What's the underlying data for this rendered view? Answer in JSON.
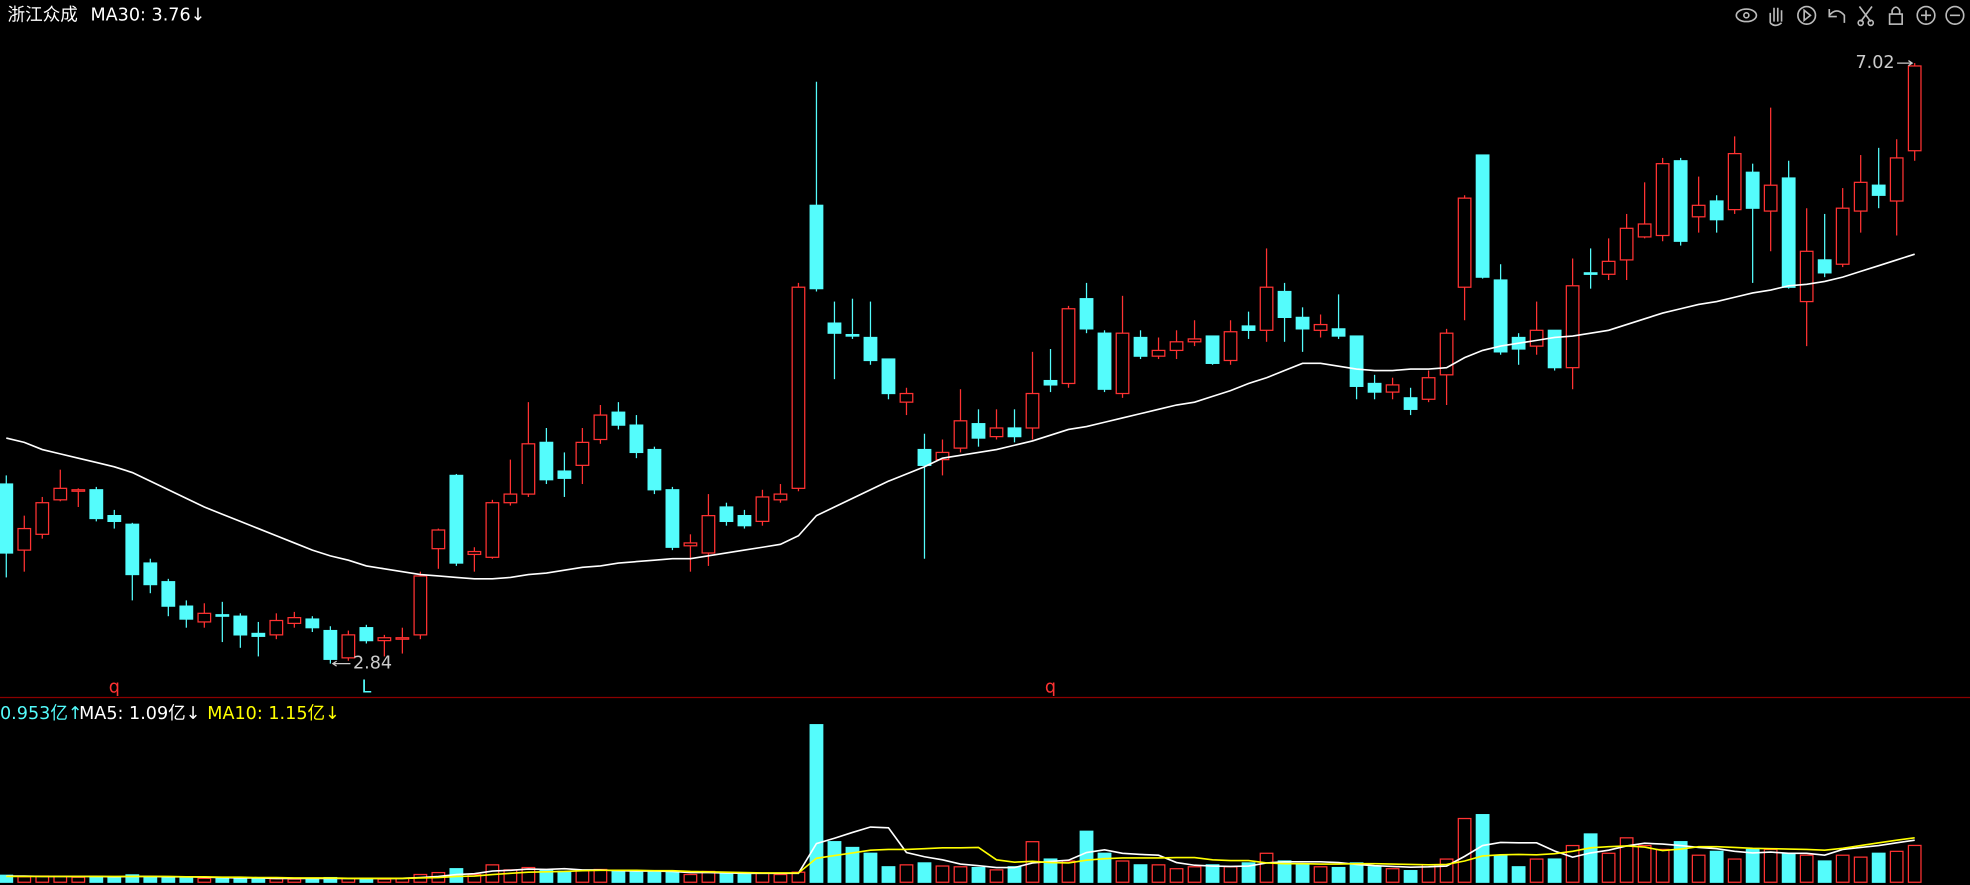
{
  "chart_data": {
    "type": "candlestick",
    "title": "浙江众成",
    "up_color": "#ff3232",
    "down_color": "#54fcfc",
    "ylim": [
      2.63,
      7.3
    ],
    "open": [
      4.09,
      3.63,
      3.74,
      3.98,
      4.04,
      4.05,
      3.87,
      3.81,
      3.54,
      3.41,
      3.24,
      3.13,
      3.18,
      3.17,
      3.05,
      3.04,
      3.12,
      3.15,
      3.07,
      2.88,
      3.09,
      3.0,
      3.01,
      3.04,
      3.64,
      4.15,
      3.6,
      3.58,
      3.96,
      4.02,
      4.38,
      4.18,
      4.22,
      4.4,
      4.59,
      4.5,
      4.33,
      4.05,
      3.66,
      3.61,
      3.93,
      3.87,
      3.83,
      3.98,
      4.06,
      6.03,
      5.21,
      5.13,
      5.11,
      4.96,
      4.66,
      4.33,
      4.26,
      4.34,
      4.51,
      4.42,
      4.48,
      4.48,
      4.81,
      4.79,
      5.38,
      5.14,
      4.72,
      5.11,
      4.98,
      5.02,
      5.08,
      5.12,
      4.95,
      5.19,
      5.16,
      5.43,
      5.25,
      5.16,
      5.17,
      5.12,
      4.79,
      4.73,
      4.69,
      4.68,
      4.85,
      5.46,
      6.38,
      5.51,
      5.11,
      5.05,
      5.16,
      4.9,
      5.56,
      5.55,
      5.65,
      5.81,
      5.82,
      6.34,
      5.95,
      6.06,
      6.0,
      6.26,
      5.99,
      6.22,
      5.36,
      5.65,
      5.62,
      5.99,
      6.17,
      6.06,
      6.41
    ],
    "high": [
      4.15,
      3.87,
      4.0,
      4.19,
      4.06,
      4.07,
      3.91,
      3.82,
      3.57,
      3.43,
      3.28,
      3.26,
      3.27,
      3.19,
      3.13,
      3.19,
      3.2,
      3.17,
      3.1,
      3.07,
      3.11,
      3.04,
      3.09,
      3.48,
      3.78,
      4.16,
      3.65,
      3.98,
      4.26,
      4.66,
      4.48,
      4.31,
      4.48,
      4.64,
      4.66,
      4.57,
      4.35,
      4.07,
      3.74,
      4.02,
      3.96,
      3.91,
      4.05,
      4.09,
      5.49,
      6.89,
      5.36,
      5.38,
      5.36,
      4.96,
      4.76,
      4.44,
      4.4,
      4.75,
      4.61,
      4.61,
      4.61,
      5.01,
      5.03,
      5.33,
      5.49,
      5.16,
      5.4,
      5.16,
      5.11,
      5.16,
      5.23,
      5.12,
      5.23,
      5.29,
      5.73,
      5.49,
      5.32,
      5.27,
      5.41,
      5.12,
      4.85,
      4.83,
      4.76,
      4.88,
      5.17,
      6.1,
      6.38,
      5.62,
      5.14,
      5.36,
      5.16,
      5.66,
      5.73,
      5.8,
      5.97,
      6.19,
      6.36,
      6.36,
      6.23,
      6.1,
      6.51,
      6.32,
      6.71,
      6.34,
      6.01,
      5.97,
      6.15,
      6.38,
      6.43,
      6.49,
      7.02
    ],
    "low": [
      3.44,
      3.48,
      3.71,
      3.97,
      3.93,
      3.83,
      3.78,
      3.28,
      3.33,
      3.17,
      3.09,
      3.09,
      2.99,
      2.95,
      2.89,
      3.01,
      3.09,
      3.06,
      2.84,
      2.86,
      2.98,
      2.89,
      2.91,
      3.01,
      3.5,
      3.52,
      3.48,
      3.57,
      3.94,
      4.0,
      4.09,
      4.0,
      4.09,
      4.37,
      4.47,
      4.27,
      4.02,
      3.63,
      3.48,
      3.52,
      3.8,
      3.78,
      3.8,
      3.96,
      4.04,
      5.43,
      4.82,
      5.1,
      4.92,
      4.68,
      4.57,
      3.57,
      4.15,
      4.31,
      4.35,
      4.4,
      4.38,
      4.4,
      4.73,
      4.76,
      5.14,
      4.73,
      4.69,
      4.96,
      4.96,
      4.96,
      5.05,
      4.92,
      4.92,
      5.1,
      5.08,
      5.08,
      5.01,
      5.11,
      5.1,
      4.68,
      4.68,
      4.68,
      4.57,
      4.66,
      4.64,
      5.23,
      5.52,
      4.99,
      4.92,
      4.99,
      4.88,
      4.75,
      5.45,
      5.51,
      5.51,
      5.8,
      5.78,
      5.75,
      5.84,
      5.84,
      5.97,
      5.49,
      5.71,
      5.45,
      5.05,
      5.53,
      5.6,
      5.84,
      6.01,
      5.82,
      6.34
    ],
    "close": [
      3.61,
      3.78,
      3.96,
      4.06,
      4.05,
      3.85,
      3.83,
      3.46,
      3.39,
      3.24,
      3.15,
      3.19,
      3.17,
      3.04,
      3.03,
      3.14,
      3.16,
      3.09,
      2.87,
      3.04,
      3.0,
      3.02,
      3.02,
      3.45,
      3.77,
      3.54,
      3.62,
      3.96,
      4.02,
      4.37,
      4.12,
      4.13,
      4.38,
      4.57,
      4.5,
      4.31,
      4.05,
      3.65,
      3.68,
      3.87,
      3.83,
      3.8,
      4.0,
      4.02,
      5.46,
      5.45,
      5.14,
      5.12,
      4.95,
      4.72,
      4.72,
      4.22,
      4.31,
      4.53,
      4.41,
      4.48,
      4.42,
      4.72,
      4.78,
      5.31,
      5.17,
      4.75,
      5.14,
      4.98,
      5.02,
      5.08,
      5.1,
      4.93,
      5.15,
      5.16,
      5.46,
      5.25,
      5.17,
      5.2,
      5.12,
      4.77,
      4.73,
      4.78,
      4.61,
      4.83,
      5.14,
      6.08,
      5.53,
      5.01,
      5.03,
      5.16,
      4.9,
      5.47,
      5.55,
      5.64,
      5.87,
      5.9,
      6.32,
      5.78,
      6.03,
      5.93,
      6.39,
      6.01,
      6.17,
      5.46,
      5.71,
      5.56,
      6.01,
      6.19,
      6.1,
      6.36,
      7.0
    ],
    "overlays": [
      {
        "name": "MA30: 3.76↓",
        "color": "#ffffff",
        "values": [
          4.41,
          4.38,
          4.33,
          4.3,
          4.27,
          4.24,
          4.21,
          4.17,
          4.11,
          4.05,
          3.99,
          3.93,
          3.88,
          3.83,
          3.78,
          3.73,
          3.68,
          3.63,
          3.59,
          3.56,
          3.52,
          3.5,
          3.48,
          3.46,
          3.45,
          3.44,
          3.43,
          3.43,
          3.44,
          3.46,
          3.47,
          3.49,
          3.51,
          3.52,
          3.54,
          3.55,
          3.56,
          3.57,
          3.57,
          3.59,
          3.61,
          3.63,
          3.65,
          3.67,
          3.73,
          3.87,
          3.93,
          3.99,
          4.05,
          4.11,
          4.16,
          4.21,
          4.27,
          4.29,
          4.31,
          4.33,
          4.36,
          4.39,
          4.43,
          4.47,
          4.49,
          4.52,
          4.55,
          4.58,
          4.61,
          4.64,
          4.66,
          4.7,
          4.74,
          4.79,
          4.83,
          4.88,
          4.93,
          4.93,
          4.91,
          4.89,
          4.88,
          4.88,
          4.89,
          4.89,
          4.9,
          4.97,
          5.02,
          5.05,
          5.07,
          5.09,
          5.11,
          5.12,
          5.14,
          5.16,
          5.2,
          5.24,
          5.28,
          5.31,
          5.34,
          5.36,
          5.39,
          5.42,
          5.44,
          5.47,
          5.48,
          5.5,
          5.53,
          5.57,
          5.61,
          5.65,
          5.69
        ]
      }
    ],
    "markers": [
      {
        "index": 6,
        "label": "q",
        "color": "#ff3232"
      },
      {
        "index": 20,
        "label": "L",
        "color": "#54fcfc"
      },
      {
        "index": 58,
        "label": "q",
        "color": "#ff3232"
      }
    ],
    "volume": {
      "type": "bar",
      "label": "0.953亿↑",
      "label_color": "#54fcfc",
      "ylim": [
        0,
        4.1
      ],
      "values": [
        0.18,
        0.14,
        0.16,
        0.15,
        0.13,
        0.15,
        0.12,
        0.19,
        0.14,
        0.12,
        0.11,
        0.1,
        0.11,
        0.12,
        0.1,
        0.09,
        0.08,
        0.09,
        0.12,
        0.1,
        0.09,
        0.08,
        0.1,
        0.2,
        0.25,
        0.35,
        0.2,
        0.45,
        0.32,
        0.38,
        0.3,
        0.28,
        0.3,
        0.33,
        0.28,
        0.26,
        0.27,
        0.25,
        0.2,
        0.28,
        0.22,
        0.2,
        0.24,
        0.2,
        0.26,
        4.08,
        1.05,
        0.9,
        0.75,
        0.4,
        0.45,
        0.5,
        0.42,
        0.4,
        0.38,
        0.32,
        0.4,
        1.05,
        0.6,
        0.55,
        1.32,
        0.75,
        0.55,
        0.45,
        0.45,
        0.35,
        0.4,
        0.45,
        0.4,
        0.5,
        0.75,
        0.55,
        0.45,
        0.4,
        0.38,
        0.5,
        0.4,
        0.35,
        0.3,
        0.45,
        0.6,
        1.65,
        1.75,
        0.7,
        0.4,
        0.6,
        0.6,
        0.95,
        1.25,
        0.75,
        1.15,
        0.95,
        0.85,
        1.05,
        0.7,
        0.8,
        0.6,
        0.85,
        0.85,
        0.75,
        0.7,
        0.55,
        0.7,
        0.65,
        0.75,
        0.8,
        0.953
      ],
      "series": [
        {
          "name": "MA5: 1.09亿↓",
          "color": "#ffffff",
          "values": [
            0.16,
            0.16,
            0.15,
            0.15,
            0.15,
            0.15,
            0.14,
            0.15,
            0.15,
            0.14,
            0.14,
            0.13,
            0.12,
            0.11,
            0.11,
            0.1,
            0.1,
            0.1,
            0.1,
            0.1,
            0.1,
            0.1,
            0.1,
            0.12,
            0.15,
            0.2,
            0.22,
            0.29,
            0.31,
            0.34,
            0.33,
            0.35,
            0.32,
            0.32,
            0.3,
            0.29,
            0.29,
            0.28,
            0.25,
            0.25,
            0.24,
            0.23,
            0.23,
            0.23,
            0.23,
            1.0,
            1.14,
            1.29,
            1.43,
            1.41,
            0.77,
            0.66,
            0.58,
            0.47,
            0.43,
            0.38,
            0.38,
            0.5,
            0.54,
            0.57,
            0.77,
            0.84,
            0.75,
            0.72,
            0.7,
            0.51,
            0.44,
            0.42,
            0.41,
            0.42,
            0.5,
            0.53,
            0.53,
            0.53,
            0.51,
            0.46,
            0.43,
            0.41,
            0.39,
            0.4,
            0.42,
            0.67,
            0.95,
            1.03,
            1.02,
            1.02,
            0.81,
            0.65,
            0.76,
            0.83,
            0.94,
            1.01,
            0.99,
            0.95,
            0.9,
            0.87,
            0.8,
            0.76,
            0.78,
            0.75,
            0.75,
            0.7,
            0.85,
            0.9,
            0.95,
            1.02,
            1.09
          ]
        },
        {
          "name": "MA10: 1.15亿↓",
          "color": "#ffff00",
          "values": [
            0.15,
            0.15,
            0.15,
            0.15,
            0.15,
            0.15,
            0.15,
            0.15,
            0.15,
            0.15,
            0.14,
            0.14,
            0.13,
            0.13,
            0.12,
            0.12,
            0.11,
            0.11,
            0.11,
            0.1,
            0.1,
            0.1,
            0.1,
            0.11,
            0.12,
            0.15,
            0.16,
            0.2,
            0.23,
            0.26,
            0.27,
            0.28,
            0.3,
            0.31,
            0.31,
            0.31,
            0.3,
            0.3,
            0.28,
            0.27,
            0.26,
            0.25,
            0.24,
            0.24,
            0.24,
            0.62,
            0.69,
            0.76,
            0.83,
            0.85,
            0.85,
            0.87,
            0.89,
            0.89,
            0.9,
            0.58,
            0.52,
            0.54,
            0.51,
            0.5,
            0.57,
            0.61,
            0.63,
            0.63,
            0.63,
            0.64,
            0.64,
            0.58,
            0.56,
            0.56,
            0.5,
            0.48,
            0.48,
            0.47,
            0.47,
            0.48,
            0.48,
            0.47,
            0.46,
            0.45,
            0.46,
            0.55,
            0.68,
            0.71,
            0.72,
            0.71,
            0.74,
            0.8,
            0.89,
            0.92,
            0.94,
            0.91,
            0.82,
            0.86,
            0.92,
            0.92,
            0.9,
            0.88,
            0.87,
            0.86,
            0.85,
            0.83,
            0.88,
            0.95,
            1.02,
            1.09,
            1.15
          ]
        }
      ]
    }
  }
}
